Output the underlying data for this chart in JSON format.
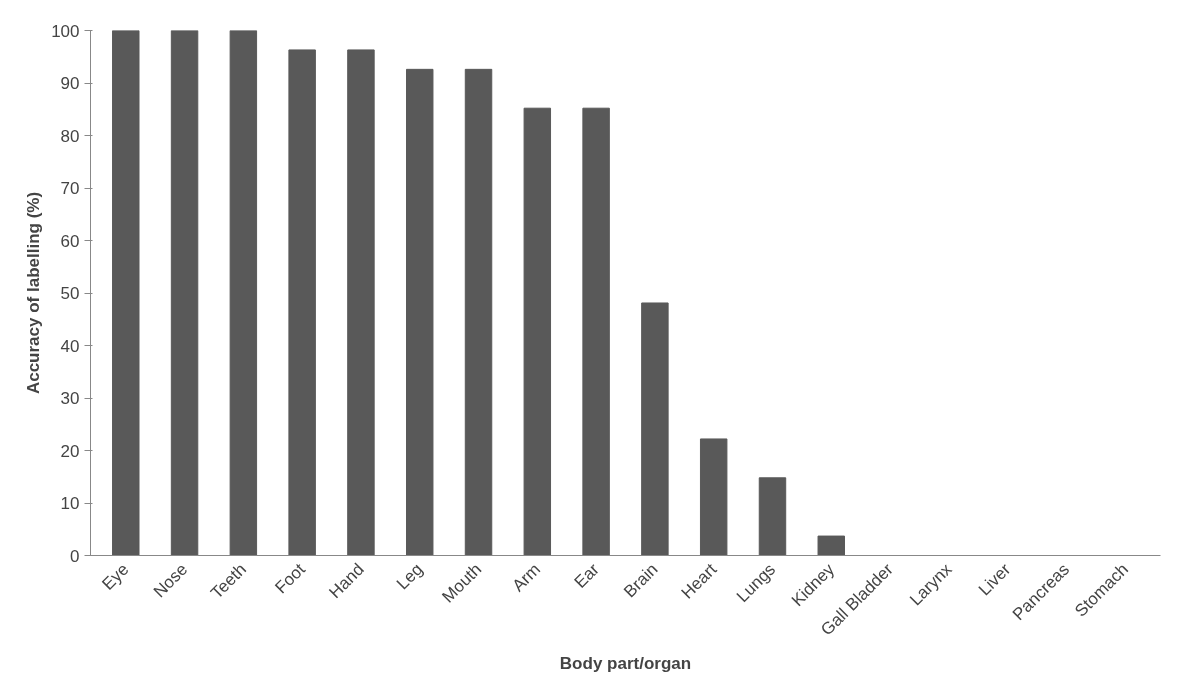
{
  "chart_data": {
    "type": "bar",
    "xlabel": "Body part/organ",
    "ylabel": "Accuracy of labelling (%)",
    "categories": [
      "Eye",
      "Nose",
      "Teeth",
      "Foot",
      "Hand",
      "Leg",
      "Mouth",
      "Arm",
      "Ear",
      "Brain",
      "Heart",
      "Lungs",
      "Kidney",
      "Gall Bladder",
      "Larynx",
      "Liver",
      "Pancreas",
      "Stomach"
    ],
    "values": [
      100,
      100,
      100,
      96.3,
      96.3,
      92.6,
      92.6,
      85.2,
      85.2,
      48.1,
      22.2,
      14.8,
      3.7,
      0,
      0,
      0,
      0,
      0
    ],
    "color": "#595959",
    "ylim": [
      0,
      100
    ],
    "yticks": [
      0,
      10,
      20,
      30,
      40,
      50,
      60,
      70,
      80,
      90,
      100
    ],
    "grid": false
  }
}
